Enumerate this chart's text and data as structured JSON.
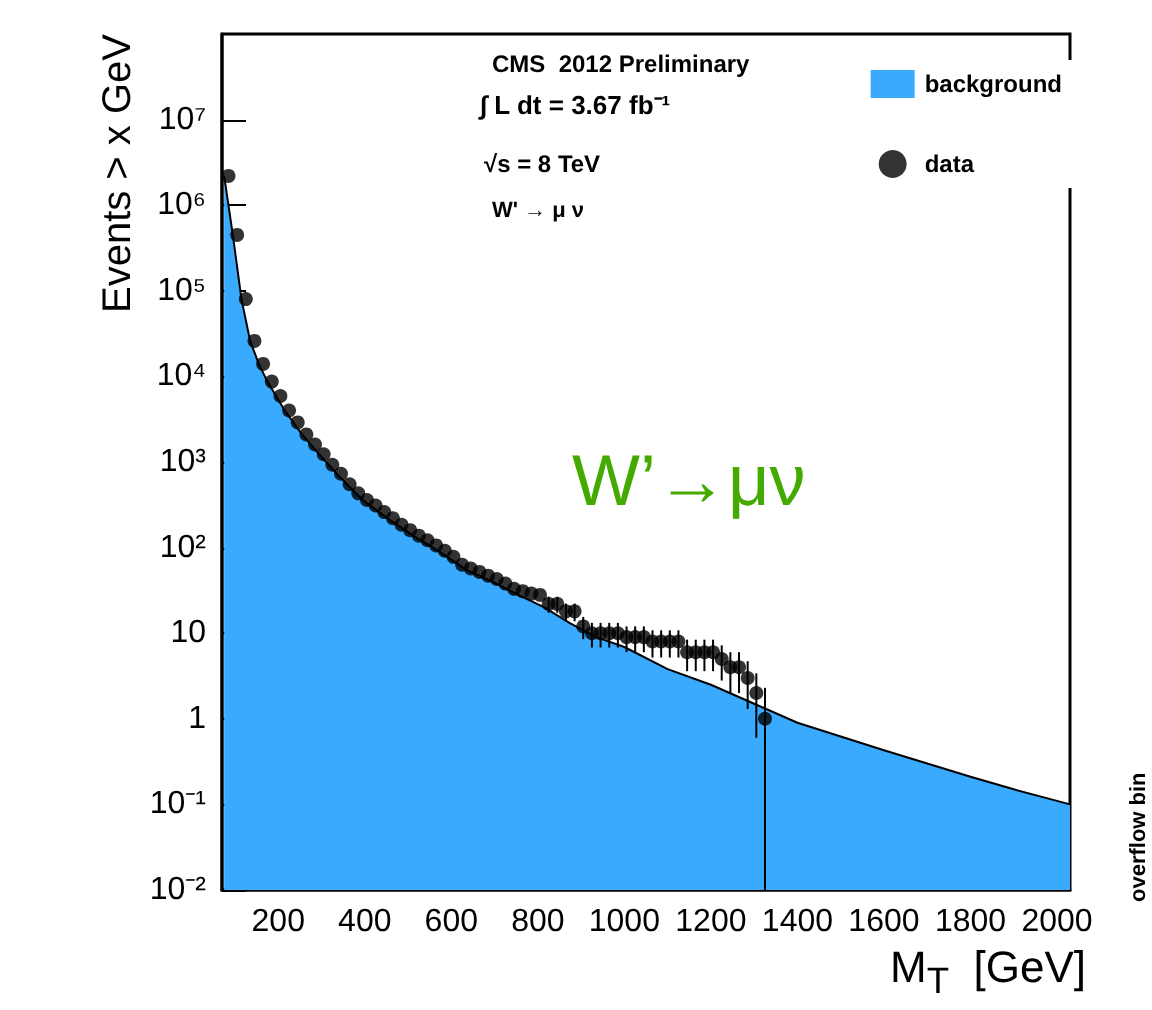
{
  "chart_data": {
    "type": "scatter",
    "xlabel": "M$_{T}$  [GeV]",
    "ylabel": "Events > x GeV",
    "log": "y",
    "xlim": [
      70,
      2030
    ],
    "ylim": [
      0.01,
      100000000
    ],
    "xticks": [
      200,
      400,
      600,
      800,
      1000,
      1200,
      1400,
      1600,
      1800,
      2000
    ],
    "yticks": [
      {
        "value": 0.01,
        "label": "10⁻²"
      },
      {
        "value": 0.1,
        "label": "10⁻¹"
      },
      {
        "value": 1,
        "label": "1"
      },
      {
        "value": 10,
        "label": "10"
      },
      {
        "value": 100,
        "label": "10²"
      },
      {
        "value": 1000,
        "label": "10³"
      },
      {
        "value": 10000,
        "label": "10⁴"
      },
      {
        "value": 100000,
        "label": "10⁵"
      },
      {
        "value": 1000000,
        "label": "10⁶"
      },
      {
        "value": 10000000,
        "label": "10⁷"
      }
    ],
    "grid": false,
    "legend": "top right",
    "annotations": [
      "CMS  2012 Preliminary",
      "∫ L dt = 3.67 fb⁻¹",
      "√s = 8 TeV",
      "W' → μ ν",
      "W’→μν",
      "overflow bin"
    ],
    "series": [
      {
        "name": "background",
        "type": "area",
        "marker": "none",
        "color": "#3aaaff",
        "x": [
          75,
          95,
          115,
          135,
          155,
          175,
          215,
          255,
          295,
          335,
          395,
          455,
          515,
          575,
          635,
          695,
          755,
          815,
          875,
          935,
          1000,
          1100,
          1200,
          1300,
          1400,
          1500,
          1600,
          1700,
          1800,
          1900,
          2000,
          2030
        ],
        "values": [
          2200000,
          450000,
          80000,
          26000,
          14000,
          8700,
          4000,
          2100,
          1230,
          730,
          360,
          215,
          135,
          88,
          55,
          40,
          28,
          20,
          13,
          9,
          6.9,
          3.8,
          2.5,
          1.5,
          0.9,
          0.62,
          0.43,
          0.3,
          0.21,
          0.15,
          0.11,
          0.1
        ]
      },
      {
        "name": "data",
        "marker": "circle",
        "color": "#000000",
        "x": [
          85,
          105,
          125,
          145,
          165,
          185,
          205,
          225,
          245,
          265,
          285,
          305,
          325,
          345,
          365,
          385,
          405,
          425,
          445,
          465,
          485,
          505,
          525,
          545,
          565,
          585,
          605,
          625,
          645,
          665,
          685,
          705,
          725,
          745,
          765,
          785,
          805,
          825,
          845,
          865,
          885,
          905,
          925,
          945,
          965,
          985,
          1005,
          1025,
          1045,
          1065,
          1085,
          1105,
          1125,
          1145,
          1165,
          1185,
          1205,
          1225,
          1245,
          1265,
          1285,
          1305,
          1325
        ],
        "values": [
          2200000,
          450000,
          80000,
          26000,
          14000,
          8700,
          5900,
          4000,
          2900,
          2100,
          1600,
          1230,
          930,
          730,
          550,
          430,
          360,
          310,
          260,
          220,
          185,
          160,
          138,
          122,
          106,
          92,
          78,
          63,
          57,
          52,
          47,
          43,
          38,
          33,
          31,
          29,
          28,
          22,
          22,
          18,
          18,
          12,
          10,
          10,
          10,
          10,
          9,
          9,
          9,
          8,
          8,
          8,
          8,
          6,
          6,
          6,
          6,
          5,
          4,
          4,
          3,
          2,
          1
        ],
        "errors": [
          null,
          null,
          null,
          null,
          null,
          null,
          null,
          null,
          null,
          null,
          null,
          null,
          null,
          null,
          null,
          null,
          null,
          null,
          null,
          null,
          null,
          null,
          null,
          null,
          null,
          null,
          null,
          null,
          null,
          null,
          null,
          null,
          null,
          null,
          null,
          null,
          null,
          4.7,
          4.7,
          4.2,
          4.2,
          3.5,
          3.2,
          3.2,
          3.2,
          3.2,
          3,
          3,
          3,
          2.8,
          2.8,
          2.8,
          2.8,
          2.4,
          2.4,
          2.4,
          2.4,
          2.2,
          2,
          2,
          1.7,
          1.4,
          [
            0.01,
            2.3
          ]
        ]
      }
    ]
  }
}
